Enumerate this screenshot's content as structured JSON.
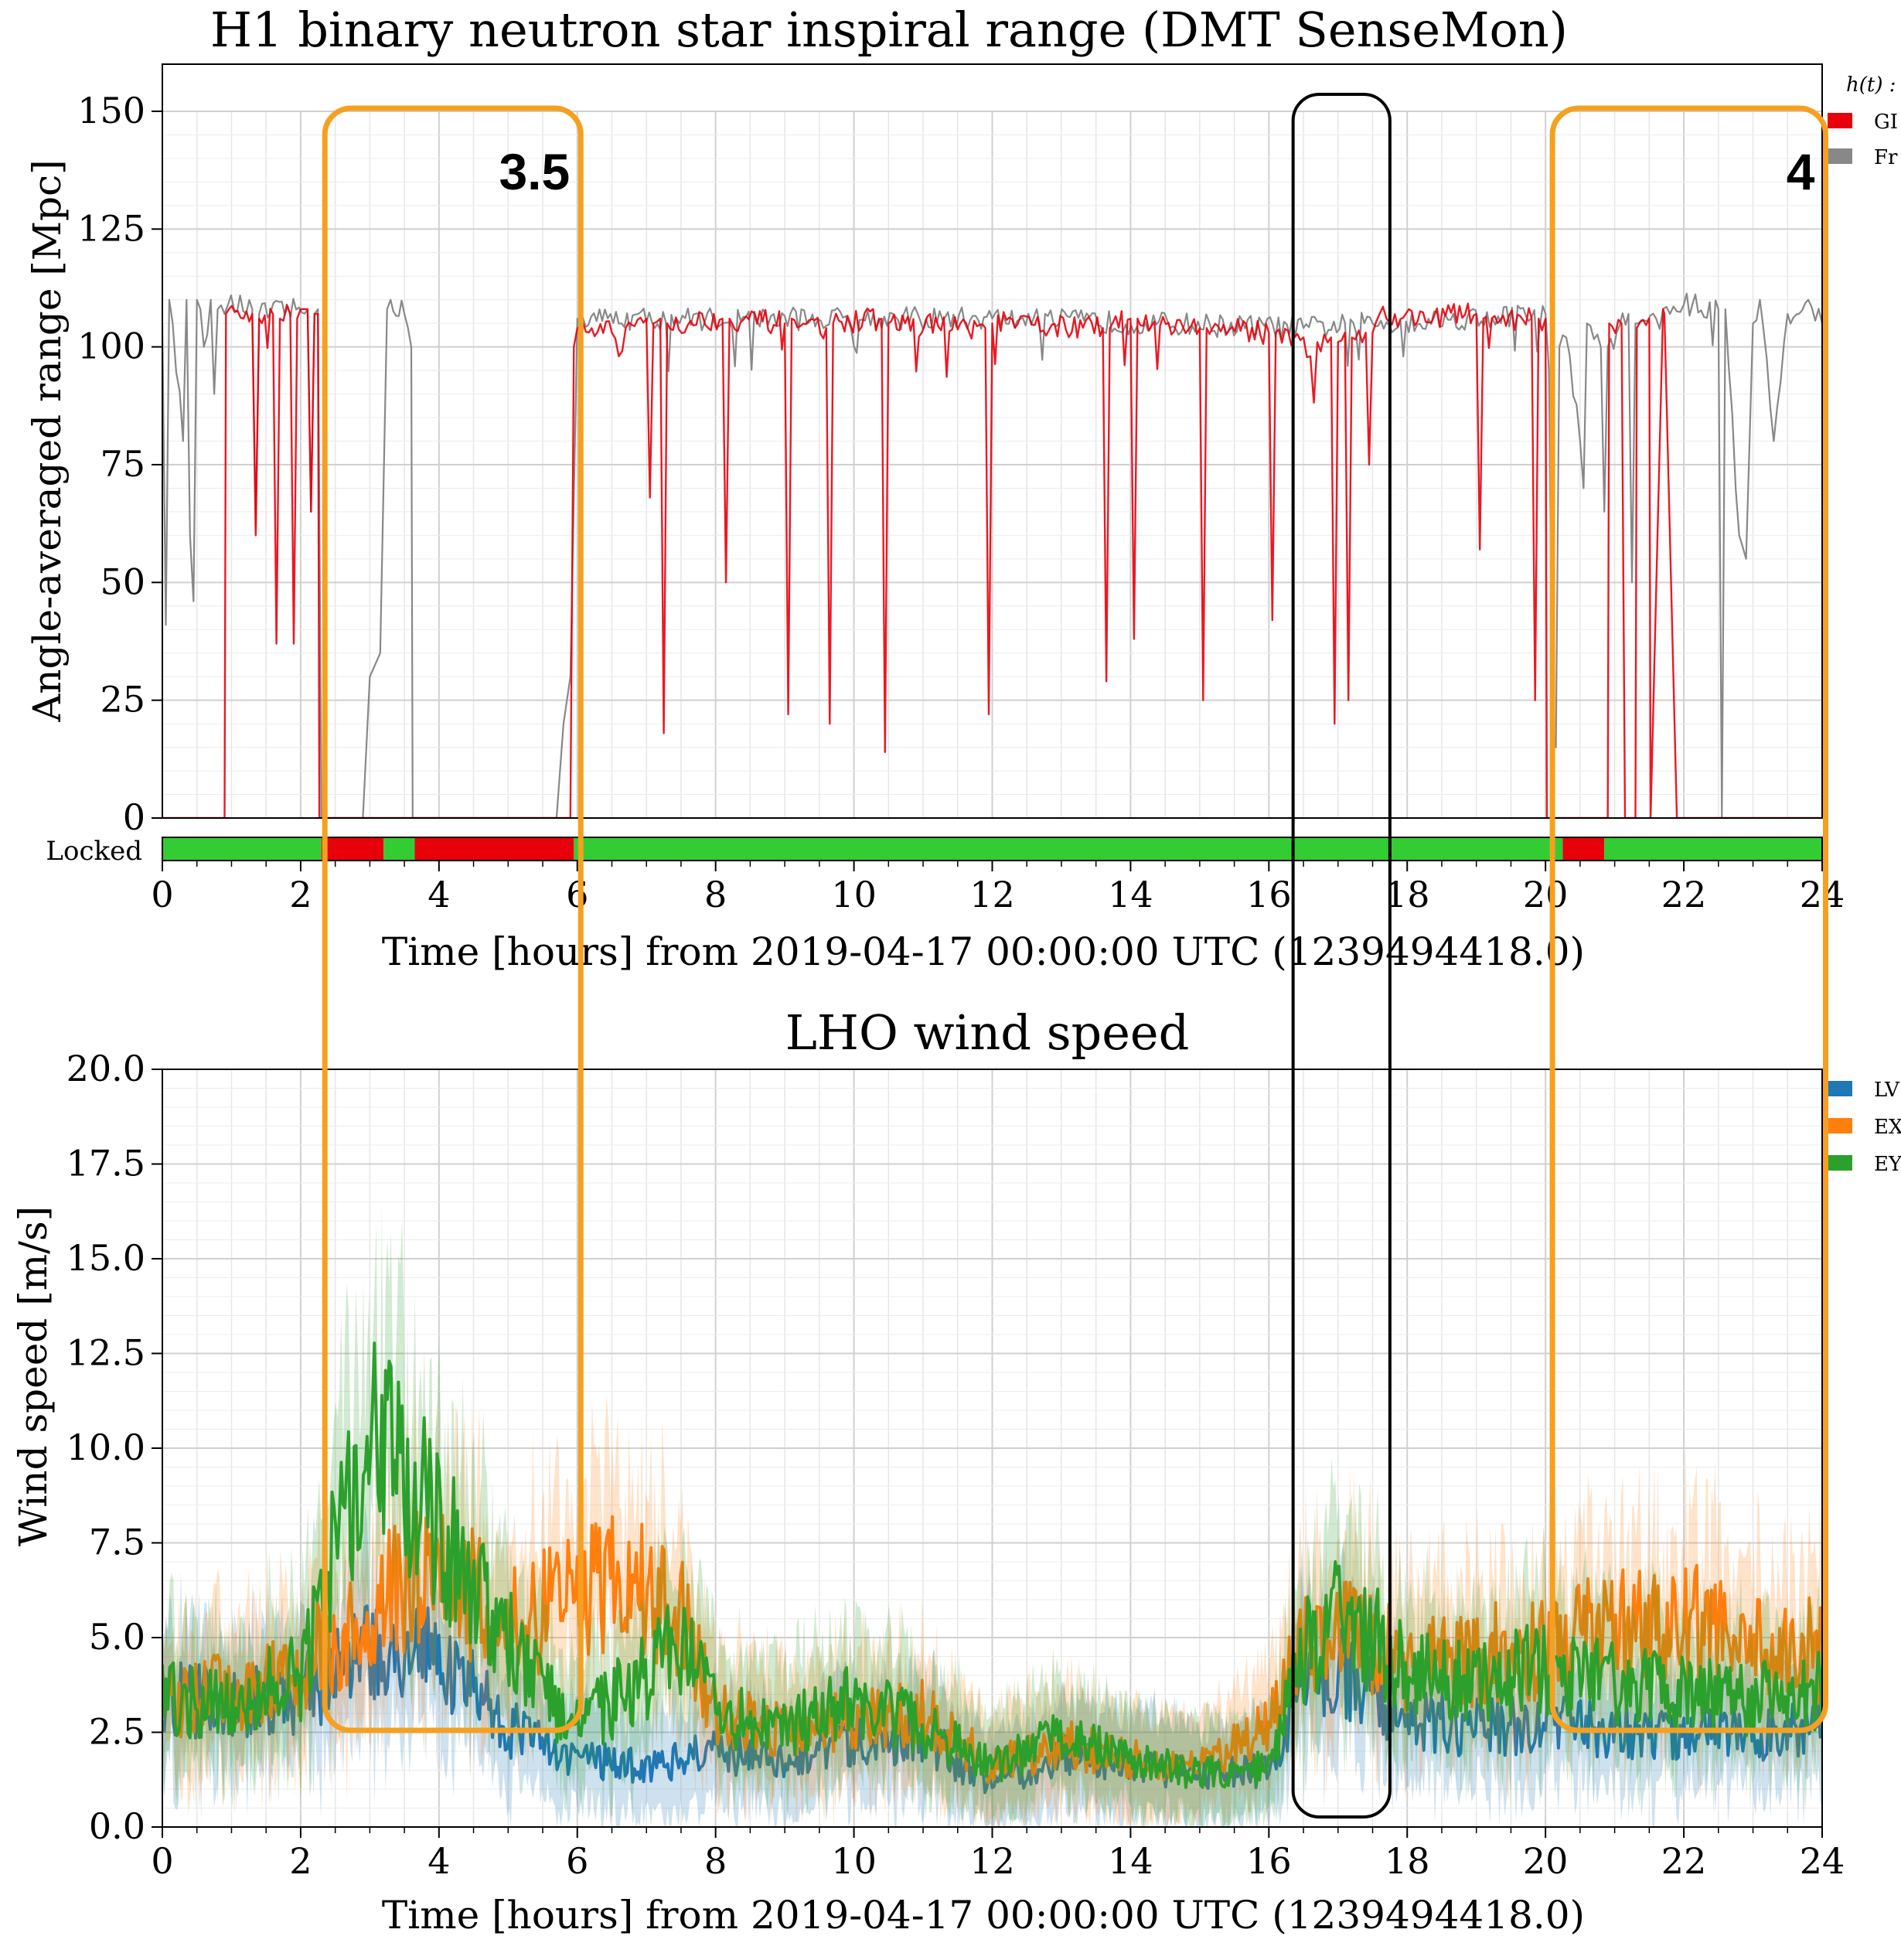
{
  "chart_data": [
    {
      "type": "line",
      "title": "H1 binary neutron star inspiral range (DMT SenseMon)",
      "xlabel": "Time [hours] from 2019-04-17 00:00:00 UTC (1239494418.0)",
      "ylabel": "Angle-averaged range [Mpc]",
      "xlim": [
        0,
        24
      ],
      "ylim": [
        0,
        160
      ],
      "xticks": [
        "0",
        "2",
        "4",
        "6",
        "8",
        "10",
        "12",
        "14",
        "16",
        "18",
        "20",
        "22",
        "24"
      ],
      "yticks": [
        "0",
        "25",
        "50",
        "75",
        "100",
        "125",
        "150"
      ],
      "grid": true,
      "legend": {
        "placement": "outside-right",
        "title": "h(t) :",
        "entries": [
          "GI",
          "Fr"
        ]
      },
      "series": [
        {
          "name": "GI",
          "color": "#e8000b",
          "x": [
            0,
            0.9,
            0.92,
            1.3,
            1.35,
            1.4,
            1.6,
            1.65,
            1.7,
            1.85,
            1.9,
            1.95,
            2.1,
            2.15,
            2.2,
            2.25,
            2.27,
            2.3,
            5.9,
            5.95,
            6.0,
            6.5,
            6.6,
            6.7,
            7.0,
            7.05,
            7.1,
            7.2,
            7.25,
            7.3,
            8.1,
            8.15,
            8.2,
            9.0,
            9.05,
            9.1,
            9.6,
            9.65,
            9.7,
            10.4,
            10.45,
            10.5,
            11.9,
            11.95,
            12.0,
            13.6,
            13.65,
            13.7,
            14.0,
            14.05,
            14.1,
            15.0,
            15.05,
            15.1,
            16.0,
            16.05,
            16.1,
            16.5,
            16.6,
            16.7,
            16.9,
            16.95,
            17.0,
            17.1,
            17.15,
            17.2,
            17.4,
            17.45,
            17.5,
            17.6,
            17.7,
            19.0,
            19.05,
            19.1,
            19.8,
            19.85,
            19.9,
            20.0,
            20.02,
            20.05,
            20.9,
            20.92,
            21.1,
            21.15,
            21.3,
            21.32,
            21.5,
            21.52,
            21.7,
            21.72,
            21.9,
            21.92,
            24.0
          ],
          "y": [
            0,
            0,
            107,
            107,
            60,
            106,
            107,
            37,
            106,
            107,
            37,
            106,
            108,
            65,
            107,
            107,
            0,
            0,
            0,
            100,
            104,
            103,
            98,
            104,
            106,
            68,
            105,
            106,
            18,
            105,
            106,
            50,
            106,
            105,
            22,
            106,
            104,
            20,
            105,
            106,
            14,
            105,
            104,
            22,
            105,
            104,
            29,
            104,
            106,
            38,
            106,
            104,
            25,
            104,
            103,
            42,
            103,
            102,
            98,
            101,
            102,
            20,
            101,
            103,
            25,
            102,
            103,
            75,
            103,
            107,
            106,
            107,
            57,
            106,
            106,
            25,
            106,
            106,
            0,
            0,
            0,
            105,
            105,
            0,
            0,
            104,
            106,
            0,
            108,
            107,
            0,
            0,
            0
          ]
        },
        {
          "name": "Fr",
          "color": "#888888",
          "x": [
            0,
            0.05,
            0.1,
            0.15,
            0.3,
            0.35,
            0.4,
            0.45,
            0.5,
            0.55,
            0.6,
            0.7,
            0.75,
            0.8,
            0.9,
            0.95,
            1.3,
            1.35,
            1.4,
            2.1,
            2.15,
            2.2,
            2.25,
            2.3,
            2.9,
            3.0,
            3.15,
            3.25,
            3.3,
            3.5,
            3.6,
            3.62,
            5.7,
            5.8,
            5.9,
            6.0,
            12.0,
            16.5,
            17.5,
            20.0,
            20.05,
            20.1,
            20.15,
            20.2,
            20.3,
            20.5,
            20.55,
            20.6,
            20.8,
            20.85,
            20.9,
            21.2,
            21.25,
            21.3,
            21.6,
            21.8,
            22.0,
            22.5,
            22.55,
            22.6,
            22.8,
            22.9,
            23.0,
            23.1,
            23.3,
            23.5,
            23.8,
            24.0
          ],
          "y": [
            105,
            41,
            110,
            105,
            80,
            110,
            60,
            46,
            110,
            108,
            100,
            110,
            90,
            108,
            107,
            109,
            108,
            62,
            107,
            108,
            65,
            107,
            108,
            0,
            0,
            30,
            35,
            108,
            110,
            107,
            100,
            0,
            0,
            20,
            30,
            106,
            106,
            104,
            105,
            107,
            95,
            20,
            15,
            100,
            102,
            80,
            70,
            105,
            100,
            65,
            100,
            107,
            50,
            105,
            106,
            107,
            109,
            108,
            0,
            108,
            60,
            55,
            105,
            110,
            80,
            107,
            110,
            105
          ]
        }
      ],
      "state_bar": {
        "label": "Locked",
        "segments": [
          {
            "start": 0,
            "end": 2.3,
            "state": "locked",
            "color": "#33cc33"
          },
          {
            "start": 2.3,
            "end": 3.2,
            "state": "unlocked",
            "color": "#e8000b"
          },
          {
            "start": 3.2,
            "end": 3.65,
            "state": "locked",
            "color": "#33cc33"
          },
          {
            "start": 3.65,
            "end": 5.95,
            "state": "unlocked",
            "color": "#e8000b"
          },
          {
            "start": 5.95,
            "end": 20.25,
            "state": "locked",
            "color": "#33cc33"
          },
          {
            "start": 20.25,
            "end": 20.85,
            "state": "unlocked",
            "color": "#e8000b"
          },
          {
            "start": 20.85,
            "end": 24.0,
            "state": "locked",
            "color": "#33cc33"
          }
        ]
      }
    },
    {
      "type": "line",
      "title": "LHO wind speed",
      "xlabel": "Time [hours] from 2019-04-17 00:00:00 UTC (1239494418.0)",
      "ylabel": "Wind speed [m/s]",
      "xlim": [
        0,
        24
      ],
      "ylim": [
        0,
        20
      ],
      "xticks": [
        "0",
        "2",
        "4",
        "6",
        "8",
        "10",
        "12",
        "14",
        "16",
        "18",
        "20",
        "22",
        "24"
      ],
      "yticks": [
        "0.0",
        "2.5",
        "5.0",
        "7.5",
        "10.0",
        "12.5",
        "15.0",
        "17.5",
        "20.0"
      ],
      "grid": true,
      "legend": {
        "placement": "outside-right",
        "entries": [
          "LV",
          "EX",
          "EY"
        ]
      },
      "series": [
        {
          "name": "LV",
          "color": "#1f77b4",
          "x": [
            0,
            1,
            2,
            2.3,
            3,
            3.5,
            4,
            5,
            6,
            7,
            8,
            9,
            10,
            11,
            12,
            13,
            14,
            15,
            16,
            16.5,
            17,
            17.5,
            18,
            19,
            20,
            21,
            22,
            23,
            24
          ],
          "y": [
            3.5,
            3.2,
            3.5,
            3.8,
            4.6,
            4.8,
            4.5,
            2.6,
            1.8,
            1.6,
            2.0,
            1.8,
            2.2,
            2.4,
            1.0,
            2.0,
            1.6,
            1.4,
            1.5,
            3.8,
            4.2,
            3.6,
            2.8,
            2.6,
            2.7,
            2.6,
            2.5,
            2.4,
            2.6
          ]
        },
        {
          "name": "EX",
          "color": "#ff7f0e",
          "x": [
            0,
            1,
            2,
            2.3,
            3,
            3.5,
            4,
            5,
            6,
            6.5,
            7,
            7.5,
            8,
            9,
            10,
            11,
            12,
            13,
            14,
            15,
            16,
            16.5,
            17,
            17.5,
            18,
            19,
            20,
            21,
            22,
            23,
            24
          ],
          "y": [
            3.3,
            3.6,
            4.0,
            4.8,
            5.5,
            6.5,
            6.8,
            5.5,
            6.0,
            6.5,
            6.2,
            5.5,
            3.0,
            2.6,
            2.8,
            3.0,
            1.6,
            2.2,
            1.8,
            1.6,
            2.6,
            4.8,
            5.5,
            4.8,
            4.2,
            4.5,
            4.8,
            5.2,
            5.4,
            5.0,
            4.6
          ]
        },
        {
          "name": "EY",
          "color": "#2ca02c",
          "x": [
            0,
            1,
            2,
            2.3,
            2.7,
            3,
            3.3,
            3.7,
            4,
            4.5,
            5,
            5.5,
            6,
            7,
            7.5,
            8,
            9,
            10,
            11,
            12,
            13,
            14,
            15,
            16,
            16.5,
            17,
            17.5,
            18,
            19,
            20,
            21,
            22,
            23,
            24
          ],
          "y": [
            3.4,
            3.3,
            4.0,
            5.5,
            9.0,
            10.0,
            9.5,
            8.8,
            8.0,
            6.5,
            5.0,
            3.5,
            2.6,
            4.0,
            4.8,
            3.0,
            2.6,
            3.4,
            2.6,
            1.6,
            2.4,
            1.8,
            1.4,
            1.6,
            4.6,
            5.8,
            5.0,
            4.0,
            3.8,
            4.2,
            3.8,
            3.6,
            3.4,
            3.6
          ]
        }
      ]
    }
  ],
  "annotations": [
    {
      "label": "3.5",
      "color": "#f5a020",
      "x_start": 2.35,
      "x_end": 6.05
    },
    {
      "label": "",
      "color": "#000000",
      "x_start": 16.35,
      "x_end": 17.75
    },
    {
      "label": "4",
      "color": "#f5a020",
      "x_start": 20.1,
      "x_end": 24.05
    }
  ]
}
